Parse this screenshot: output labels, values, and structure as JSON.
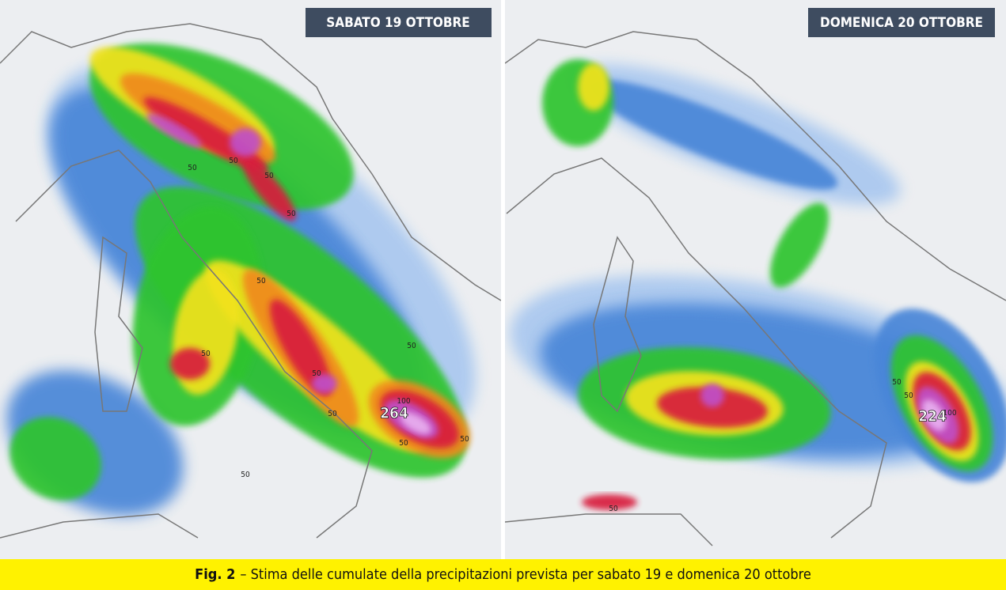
{
  "panels": [
    {
      "title": "SABATO 19 OTTOBRE",
      "labels": [
        "50",
        "50",
        "50",
        "50",
        "50",
        "50",
        "50",
        "50",
        "50",
        "50",
        "50",
        "50",
        "100",
        "264"
      ]
    },
    {
      "title": "DOMENICA 20 OTTOBRE",
      "labels": [
        "50",
        "50",
        "50",
        "100",
        "224"
      ]
    }
  ],
  "caption": {
    "figure": "Fig. 2",
    "text": "– Stima delle cumulate della precipitazioni prevista per sabato 19 e domenica 20 ottobre"
  }
}
